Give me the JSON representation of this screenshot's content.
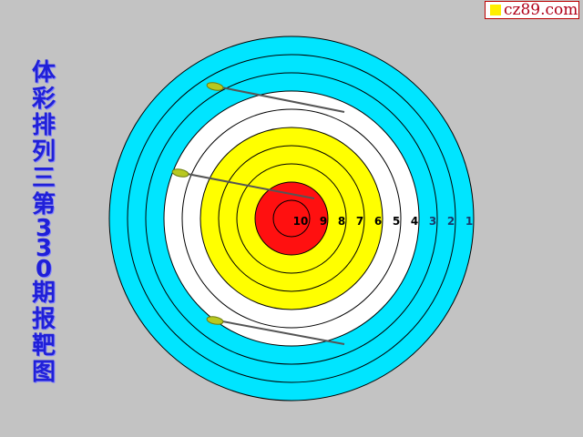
{
  "logo": {
    "text": "cz89.com"
  },
  "title": {
    "chars": [
      "体",
      "彩",
      "排",
      "列",
      "三",
      "第",
      "3",
      "3",
      "0",
      "期",
      "报",
      "靶",
      "图"
    ]
  },
  "target": {
    "ring_labels": [
      "10",
      "9",
      "8",
      "7",
      "6",
      "5",
      "4",
      "3",
      "2",
      "1"
    ],
    "colors": {
      "cyan": "#00e5ff",
      "white": "#ffffff",
      "yellow": "#ffff00",
      "red": "#ff1010",
      "background": "#c3c3c3"
    }
  }
}
